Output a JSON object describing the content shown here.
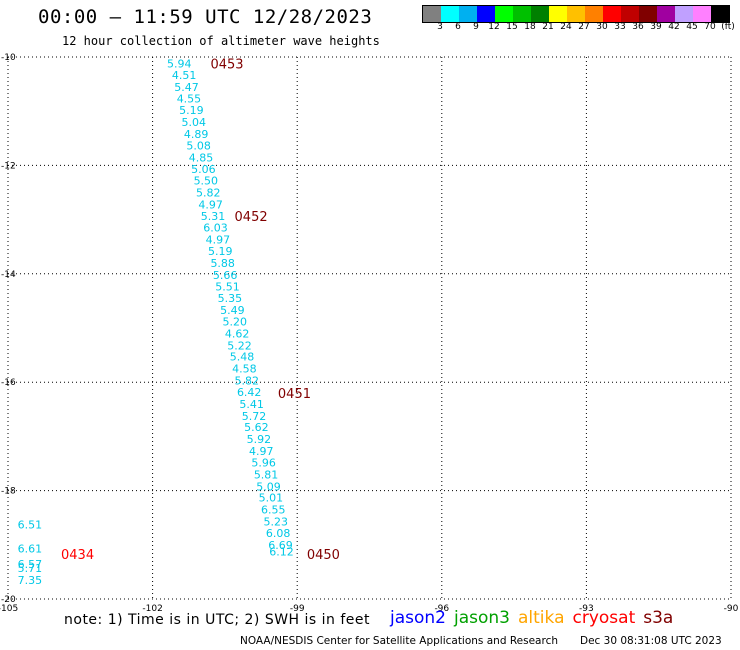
{
  "header": {
    "title": "00:00 — 11:59 UTC 12/28/2023",
    "subtitle": "12 hour collection of altimeter wave heights"
  },
  "colorbar": {
    "colors": [
      "#808080",
      "#00ffff",
      "#00b0f0",
      "#0000ff",
      "#00ff00",
      "#00c000",
      "#008000",
      "#ffff00",
      "#ffc000",
      "#ff8000",
      "#ff0000",
      "#c00000",
      "#800000",
      "#a000a0",
      "#c0a0ff",
      "#ff80ff",
      "#000000"
    ],
    "labels": [
      "3",
      "6",
      "9",
      "12",
      "15",
      "18",
      "21",
      "24",
      "27",
      "30",
      "33",
      "36",
      "39",
      "42",
      "45",
      "70",
      "(ft)"
    ]
  },
  "chart_data": {
    "type": "scatter",
    "xlim": [
      -105,
      -90
    ],
    "ylim": [
      -20,
      -10
    ],
    "x_ticks": [
      "-105",
      "-102",
      "-99",
      "-96",
      "-93",
      "-90"
    ],
    "y_ticks": [
      "-10",
      "-12",
      "-14",
      "-16",
      "-18",
      "-20"
    ],
    "grid": true,
    "points": [
      {
        "x": -101.7,
        "y": -10.12,
        "label": "5.94"
      },
      {
        "x": -101.6,
        "y": -10.33,
        "label": "4.51"
      },
      {
        "x": -101.55,
        "y": -10.55,
        "label": "5.47"
      },
      {
        "x": -101.5,
        "y": -10.77,
        "label": "4.55"
      },
      {
        "x": -101.45,
        "y": -10.98,
        "label": "5.19"
      },
      {
        "x": -101.4,
        "y": -11.2,
        "label": "5.04"
      },
      {
        "x": -101.35,
        "y": -11.42,
        "label": "4.89"
      },
      {
        "x": -101.3,
        "y": -11.63,
        "label": "5.08"
      },
      {
        "x": -101.25,
        "y": -11.85,
        "label": "4.85"
      },
      {
        "x": -101.2,
        "y": -12.07,
        "label": "5.06"
      },
      {
        "x": -101.15,
        "y": -12.28,
        "label": "5.50"
      },
      {
        "x": -101.1,
        "y": -12.5,
        "label": "5.82"
      },
      {
        "x": -101.05,
        "y": -12.72,
        "label": "4.97"
      },
      {
        "x": -101.0,
        "y": -12.93,
        "label": "5.31"
      },
      {
        "x": -100.95,
        "y": -13.15,
        "label": "6.03"
      },
      {
        "x": -100.9,
        "y": -13.37,
        "label": "4.97"
      },
      {
        "x": -100.85,
        "y": -13.58,
        "label": "5.19"
      },
      {
        "x": -100.8,
        "y": -13.8,
        "label": "5.88"
      },
      {
        "x": -100.75,
        "y": -14.02,
        "label": "5.66"
      },
      {
        "x": -100.7,
        "y": -14.23,
        "label": "5.51"
      },
      {
        "x": -100.65,
        "y": -14.45,
        "label": "5.35"
      },
      {
        "x": -100.6,
        "y": -14.67,
        "label": "5.49"
      },
      {
        "x": -100.55,
        "y": -14.88,
        "label": "5.20"
      },
      {
        "x": -100.5,
        "y": -15.1,
        "label": "4.62"
      },
      {
        "x": -100.45,
        "y": -15.32,
        "label": "5.22"
      },
      {
        "x": -100.4,
        "y": -15.53,
        "label": "5.48"
      },
      {
        "x": -100.35,
        "y": -15.75,
        "label": "4.58"
      },
      {
        "x": -100.3,
        "y": -15.97,
        "label": "5.82"
      },
      {
        "x": -100.25,
        "y": -16.18,
        "label": "6.42"
      },
      {
        "x": -100.2,
        "y": -16.4,
        "label": "5.41"
      },
      {
        "x": -100.15,
        "y": -16.62,
        "label": "5.72"
      },
      {
        "x": -100.1,
        "y": -16.83,
        "label": "5.62"
      },
      {
        "x": -100.05,
        "y": -17.05,
        "label": "5.92"
      },
      {
        "x": -100.0,
        "y": -17.27,
        "label": "4.97"
      },
      {
        "x": -99.95,
        "y": -17.48,
        "label": "5.96"
      },
      {
        "x": -99.9,
        "y": -17.7,
        "label": "5.81"
      },
      {
        "x": -99.85,
        "y": -17.92,
        "label": "5.09"
      },
      {
        "x": -99.8,
        "y": -18.13,
        "label": "5.01"
      },
      {
        "x": -99.75,
        "y": -18.35,
        "label": "6.55"
      },
      {
        "x": -99.7,
        "y": -18.57,
        "label": "5.23"
      },
      {
        "x": -99.65,
        "y": -18.78,
        "label": "6.08"
      },
      {
        "x": -99.6,
        "y": -19.0,
        "label": "6.69"
      },
      {
        "x": -99.58,
        "y": -19.12,
        "label": "6.12"
      },
      {
        "x": -104.8,
        "y": -18.63,
        "label": "6.51"
      },
      {
        "x": -104.8,
        "y": -19.07,
        "label": "6.61"
      },
      {
        "x": -104.8,
        "y": -19.35,
        "label": "6.57"
      },
      {
        "x": -104.8,
        "y": -19.43,
        "label": "5.71"
      },
      {
        "x": -104.8,
        "y": -19.65,
        "label": "7.35"
      }
    ],
    "time_labels": [
      {
        "x": -100.8,
        "y": -10.12,
        "text": "0453",
        "color": "#800000"
      },
      {
        "x": -100.3,
        "y": -12.93,
        "text": "0452",
        "color": "#800000"
      },
      {
        "x": -99.4,
        "y": -16.2,
        "text": "0451",
        "color": "#800000"
      },
      {
        "x": -98.8,
        "y": -19.17,
        "text": "0450",
        "color": "#800000"
      },
      {
        "x": -103.9,
        "y": -19.17,
        "text": "0434",
        "color": "#ff0000"
      }
    ]
  },
  "legend": {
    "note": "note: 1) Time is in UTC; 2) SWH is in feet",
    "satellites": [
      {
        "name": "jason2",
        "color": "#0000ff"
      },
      {
        "name": "jason3",
        "color": "#00a000"
      },
      {
        "name": "altika",
        "color": "#ffa500"
      },
      {
        "name": "cryosat",
        "color": "#ff0000"
      },
      {
        "name": "s3a",
        "color": "#800000"
      }
    ]
  },
  "footer": {
    "credit": "NOAA/NESDIS Center for Satellite Applications and Research",
    "timestamp": "Dec 30 08:31:08 UTC 2023"
  }
}
